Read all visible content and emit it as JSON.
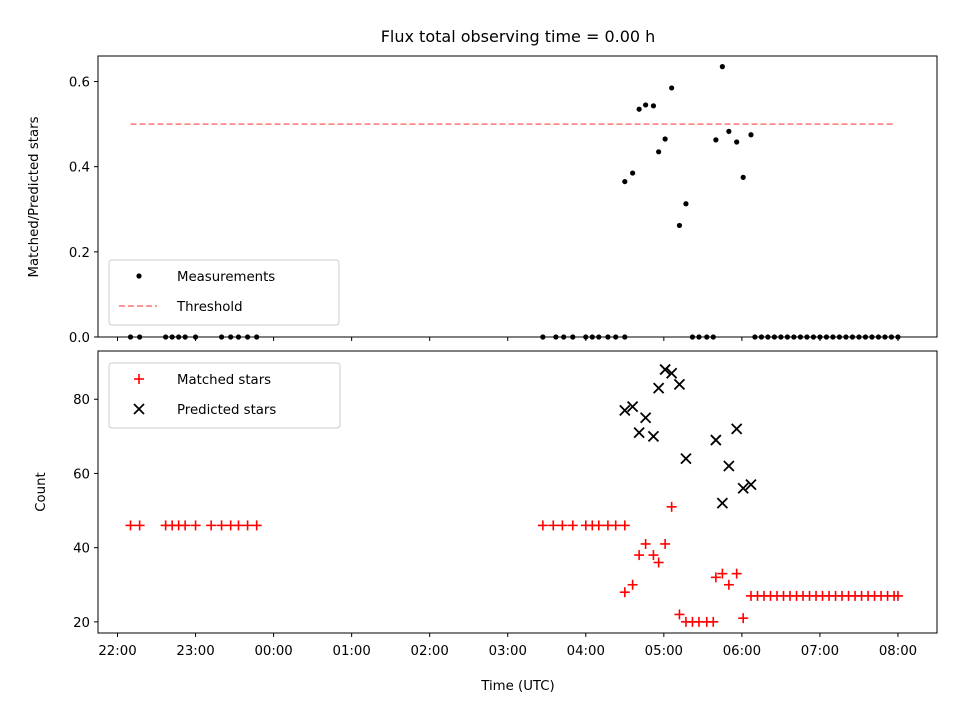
{
  "figure": {
    "title": "Flux total observing time = 0.00 h",
    "xlabel": "Time (UTC)"
  },
  "chart_data": [
    {
      "type": "scatter",
      "ylabel": "Matched/Predicted stars",
      "xlim": [
        "21:45",
        "08:30"
      ],
      "ylim": [
        0,
        0.66
      ],
      "yticks": [
        "0.0",
        "0.2",
        "0.4",
        "0.6"
      ],
      "legend_position": "lower-left",
      "series": [
        {
          "name": "Measurements",
          "kind": "scatter",
          "color": "#000000",
          "marker": "dot",
          "points": [
            [
              "22:10",
              0
            ],
            [
              "22:17",
              0
            ],
            [
              "22:37",
              0
            ],
            [
              "22:42",
              0
            ],
            [
              "22:47",
              0
            ],
            [
              "22:52",
              0
            ],
            [
              "23:00",
              0
            ],
            [
              "23:20",
              0
            ],
            [
              "23:27",
              0
            ],
            [
              "23:33",
              0
            ],
            [
              "23:40",
              0
            ],
            [
              "23:47",
              0
            ],
            [
              "03:27",
              0
            ],
            [
              "03:37",
              0
            ],
            [
              "03:43",
              0
            ],
            [
              "03:50",
              0
            ],
            [
              "04:00",
              0
            ],
            [
              "04:05",
              0
            ],
            [
              "04:10",
              0
            ],
            [
              "04:17",
              0
            ],
            [
              "04:23",
              0
            ],
            [
              "04:30",
              0
            ],
            [
              "04:30",
              0.365
            ],
            [
              "04:36",
              0.385
            ],
            [
              "04:41",
              0.535
            ],
            [
              "04:46",
              0.545
            ],
            [
              "04:52",
              0.543
            ],
            [
              "04:56",
              0.435
            ],
            [
              "05:01",
              0.465
            ],
            [
              "05:06",
              0.585
            ],
            [
              "05:12",
              0.262
            ],
            [
              "05:17",
              0.313
            ],
            [
              "05:22",
              0
            ],
            [
              "05:27",
              0
            ],
            [
              "05:33",
              0
            ],
            [
              "05:38",
              0
            ],
            [
              "05:40",
              0.463
            ],
            [
              "05:45",
              0.635
            ],
            [
              "05:50",
              0.483
            ],
            [
              "05:56",
              0.458
            ],
            [
              "06:01",
              0.375
            ],
            [
              "06:07",
              0.475
            ],
            [
              "06:10",
              0
            ],
            [
              "06:15",
              0
            ],
            [
              "06:20",
              0
            ],
            [
              "06:25",
              0
            ],
            [
              "06:30",
              0
            ],
            [
              "06:35",
              0
            ],
            [
              "06:40",
              0
            ],
            [
              "06:45",
              0
            ],
            [
              "06:50",
              0
            ],
            [
              "06:55",
              0
            ],
            [
              "07:00",
              0
            ],
            [
              "07:05",
              0
            ],
            [
              "07:10",
              0
            ],
            [
              "07:15",
              0
            ],
            [
              "07:20",
              0
            ],
            [
              "07:25",
              0
            ],
            [
              "07:30",
              0
            ],
            [
              "07:35",
              0
            ],
            [
              "07:40",
              0
            ],
            [
              "07:45",
              0
            ],
            [
              "07:50",
              0
            ],
            [
              "07:55",
              0
            ],
            [
              "08:00",
              0
            ]
          ]
        },
        {
          "name": "Threshold",
          "kind": "line",
          "color": "#ff7373",
          "dash": "dashed",
          "points": [
            [
              "22:10",
              0.5
            ],
            [
              "07:58",
              0.5
            ]
          ]
        }
      ]
    },
    {
      "type": "scatter",
      "ylabel": "Count",
      "xlim": [
        "21:45",
        "08:30"
      ],
      "ylim": [
        17,
        93
      ],
      "yticks": [
        "20",
        "40",
        "60",
        "80"
      ],
      "xticks": [
        "22:00",
        "23:00",
        "00:00",
        "01:00",
        "02:00",
        "03:00",
        "04:00",
        "05:00",
        "06:00",
        "07:00",
        "08:00"
      ],
      "legend_position": "top-left",
      "series": [
        {
          "name": "Matched stars",
          "kind": "scatter",
          "color": "#ff0000",
          "marker": "plus",
          "points": [
            [
              "22:10",
              46
            ],
            [
              "22:17",
              46
            ],
            [
              "22:37",
              46
            ],
            [
              "22:42",
              46
            ],
            [
              "22:47",
              46
            ],
            [
              "22:52",
              46
            ],
            [
              "23:00",
              46
            ],
            [
              "23:12",
              46
            ],
            [
              "23:20",
              46
            ],
            [
              "23:27",
              46
            ],
            [
              "23:33",
              46
            ],
            [
              "23:40",
              46
            ],
            [
              "23:47",
              46
            ],
            [
              "03:27",
              46
            ],
            [
              "03:35",
              46
            ],
            [
              "03:42",
              46
            ],
            [
              "03:50",
              46
            ],
            [
              "04:00",
              46
            ],
            [
              "04:05",
              46
            ],
            [
              "04:10",
              46
            ],
            [
              "04:17",
              46
            ],
            [
              "04:23",
              46
            ],
            [
              "04:30",
              46
            ],
            [
              "04:30",
              28
            ],
            [
              "04:36",
              30
            ],
            [
              "04:41",
              38
            ],
            [
              "04:46",
              41
            ],
            [
              "04:52",
              38
            ],
            [
              "04:56",
              36
            ],
            [
              "05:01",
              41
            ],
            [
              "05:06",
              51
            ],
            [
              "05:12",
              22
            ],
            [
              "05:17",
              20
            ],
            [
              "05:22",
              20
            ],
            [
              "05:27",
              20
            ],
            [
              "05:33",
              20
            ],
            [
              "05:38",
              20
            ],
            [
              "05:40",
              32
            ],
            [
              "05:45",
              33
            ],
            [
              "05:50",
              30
            ],
            [
              "05:56",
              33
            ],
            [
              "06:01",
              21
            ],
            [
              "06:07",
              27
            ],
            [
              "06:12",
              27
            ],
            [
              "06:17",
              27
            ],
            [
              "06:22",
              27
            ],
            [
              "06:27",
              27
            ],
            [
              "06:32",
              27
            ],
            [
              "06:37",
              27
            ],
            [
              "06:42",
              27
            ],
            [
              "06:47",
              27
            ],
            [
              "06:52",
              27
            ],
            [
              "06:57",
              27
            ],
            [
              "07:02",
              27
            ],
            [
              "07:07",
              27
            ],
            [
              "07:12",
              27
            ],
            [
              "07:17",
              27
            ],
            [
              "07:22",
              27
            ],
            [
              "07:27",
              27
            ],
            [
              "07:32",
              27
            ],
            [
              "07:37",
              27
            ],
            [
              "07:42",
              27
            ],
            [
              "07:47",
              27
            ],
            [
              "07:52",
              27
            ],
            [
              "07:57",
              27
            ],
            [
              "08:00",
              27
            ]
          ]
        },
        {
          "name": "Predicted stars",
          "kind": "scatter",
          "color": "#000000",
          "marker": "x",
          "points": [
            [
              "04:30",
              77
            ],
            [
              "04:36",
              78
            ],
            [
              "04:41",
              71
            ],
            [
              "04:46",
              75
            ],
            [
              "04:52",
              70
            ],
            [
              "04:56",
              83
            ],
            [
              "05:01",
              88
            ],
            [
              "05:06",
              87
            ],
            [
              "05:12",
              84
            ],
            [
              "05:17",
              64
            ],
            [
              "05:40",
              69
            ],
            [
              "05:45",
              52
            ],
            [
              "05:50",
              62
            ],
            [
              "05:56",
              72
            ],
            [
              "06:01",
              56
            ],
            [
              "06:07",
              57
            ]
          ]
        }
      ]
    }
  ]
}
